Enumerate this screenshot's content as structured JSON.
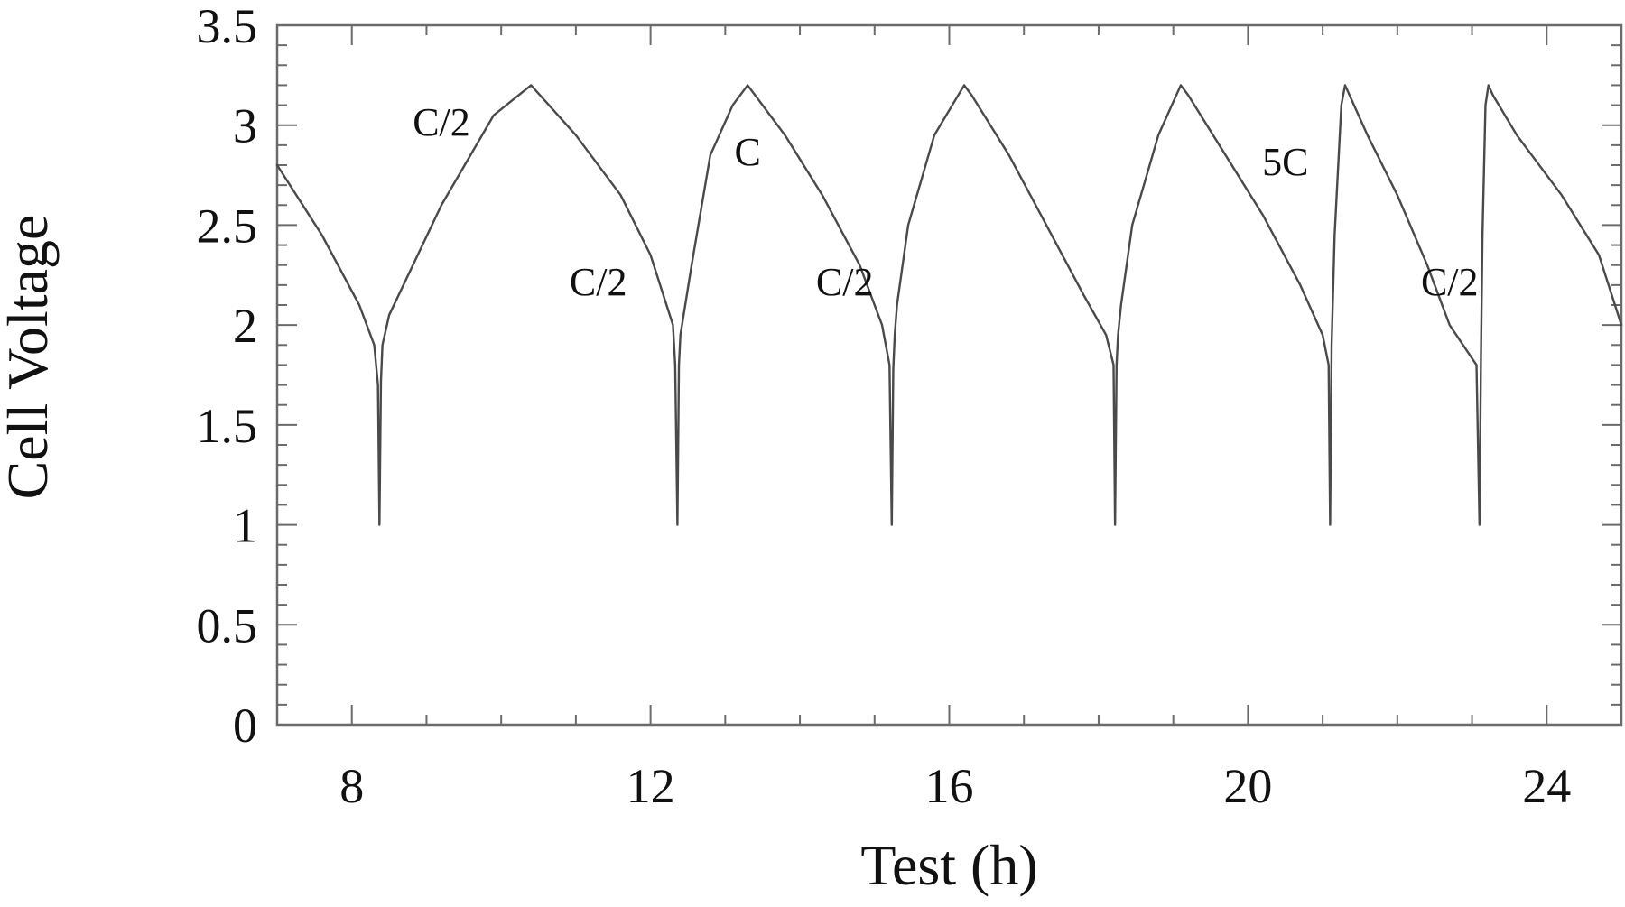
{
  "chart_data": {
    "type": "line",
    "xlabel": "Test (h)",
    "ylabel": "Cell Voltage",
    "xlim": [
      7,
      25
    ],
    "ylim": [
      0,
      3.5
    ],
    "x_ticks": [
      8,
      12,
      16,
      20,
      24
    ],
    "y_ticks": [
      0,
      0.5,
      1,
      1.5,
      2,
      2.5,
      3,
      3.5
    ],
    "y_tick_labels": [
      "0",
      "0.5",
      "1",
      "1.5",
      "2",
      "2.5",
      "3",
      "3.5"
    ],
    "x_minor_step": 1,
    "y_minor_step": 0.1,
    "grid": false,
    "series": [
      {
        "x": [
          7,
          7.6,
          8.1,
          8.3,
          8.35,
          8.37,
          8.39,
          8.41,
          8.5,
          9.2,
          9.9,
          10.4,
          11.0,
          11.6,
          12.0,
          12.3,
          12.33,
          12.36,
          12.38,
          12.4,
          12.55,
          12.8,
          13.1,
          13.3,
          13.8,
          14.3,
          14.8,
          15.1,
          15.2,
          15.23,
          15.25,
          15.27,
          15.3,
          15.45,
          15.8,
          16.2,
          16.3,
          16.8,
          17.3,
          17.8,
          18.1,
          18.2,
          18.22,
          18.24,
          18.26,
          18.3,
          18.45,
          18.8,
          19.1,
          19.2,
          19.7,
          20.2,
          20.7,
          21.0,
          21.08,
          21.1,
          21.12,
          21.16,
          21.25,
          21.3,
          21.6,
          22.0,
          22.4,
          22.7,
          23.06,
          23.1,
          23.12,
          23.14,
          23.18,
          23.22,
          23.28,
          23.6,
          24.2,
          24.7,
          25.0
        ],
        "y": [
          2.8,
          2.45,
          2.1,
          1.9,
          1.7,
          1.0,
          1.72,
          1.9,
          2.05,
          2.6,
          3.05,
          3.2,
          2.95,
          2.65,
          2.35,
          2.0,
          1.8,
          1.0,
          1.8,
          1.95,
          2.3,
          2.85,
          3.1,
          3.2,
          2.95,
          2.65,
          2.3,
          2.0,
          1.8,
          1.0,
          1.78,
          1.95,
          2.1,
          2.5,
          2.95,
          3.2,
          3.15,
          2.85,
          2.5,
          2.15,
          1.95,
          1.8,
          1.0,
          1.8,
          1.95,
          2.1,
          2.5,
          2.95,
          3.2,
          3.15,
          2.85,
          2.55,
          2.2,
          1.95,
          1.8,
          1.0,
          1.9,
          2.45,
          3.1,
          3.2,
          2.95,
          2.65,
          2.3,
          2.0,
          1.8,
          1.0,
          1.85,
          2.45,
          3.1,
          3.2,
          3.15,
          2.95,
          2.65,
          2.35,
          2.0
        ]
      }
    ],
    "annotations": [
      {
        "text": "C/2",
        "x": 9.2,
        "y": 2.95
      },
      {
        "text": "C/2",
        "x": 11.3,
        "y": 2.15
      },
      {
        "text": "C",
        "x": 13.3,
        "y": 2.8
      },
      {
        "text": "C/2",
        "x": 14.6,
        "y": 2.15
      },
      {
        "text": "5C",
        "x": 20.5,
        "y": 2.75
      },
      {
        "text": "C/2",
        "x": 22.7,
        "y": 2.15
      }
    ]
  }
}
